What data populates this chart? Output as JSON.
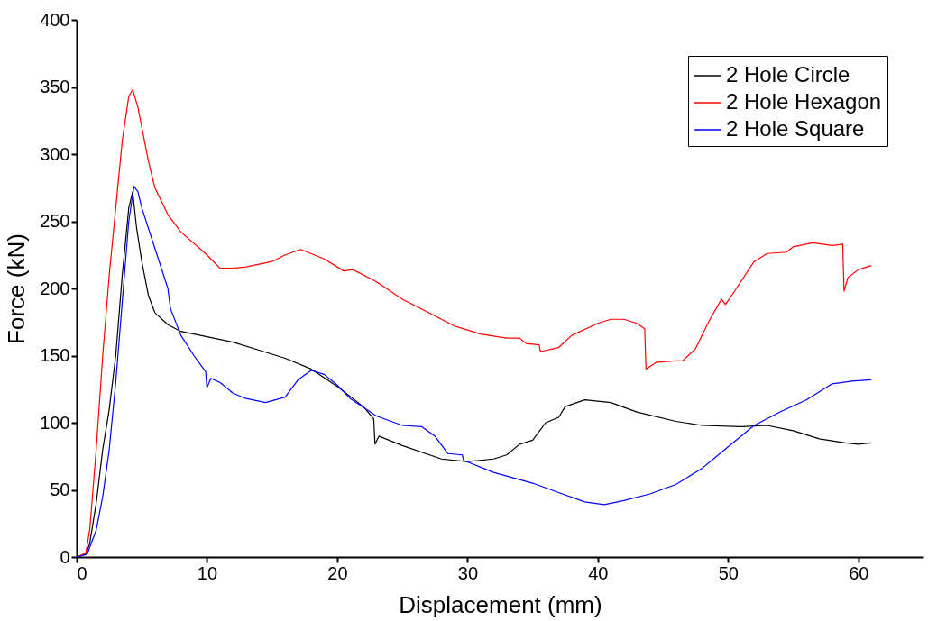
{
  "chart_data": {
    "type": "line",
    "xlabel": "Displacement (mm)",
    "ylabel": "Force (kN)",
    "xlim": [
      0,
      65
    ],
    "xticks": [
      0,
      10,
      20,
      30,
      40,
      50,
      60
    ],
    "ylim": [
      0,
      400
    ],
    "yticks": [
      0,
      50,
      100,
      150,
      200,
      250,
      300,
      350,
      400
    ],
    "grid": false,
    "legend": "top right",
    "marker": "none",
    "line_style": "solid",
    "series": [
      {
        "name": "2 Hole Circle",
        "color": "#000000",
        "x": [
          0,
          0.7,
          1,
          1.5,
          2,
          2.5,
          3,
          3.5,
          4,
          4.3,
          4.6,
          5,
          5.5,
          6,
          7,
          8,
          10,
          12,
          14,
          16,
          18,
          20,
          22,
          22.8,
          22.9,
          23.2,
          25,
          28,
          30,
          32,
          33,
          34,
          35,
          36,
          37,
          37.5,
          39,
          41,
          43,
          46,
          48,
          51,
          53,
          55,
          57,
          59,
          60,
          61
        ],
        "values": [
          0,
          2,
          10,
          40,
          80,
          110,
          150,
          210,
          260,
          272,
          245,
          220,
          195,
          182,
          173,
          168,
          164,
          160,
          154,
          148,
          140,
          127,
          112,
          103,
          84,
          90,
          83,
          73,
          71,
          73,
          76,
          84,
          87,
          100,
          104,
          112,
          117,
          115,
          108,
          101,
          98,
          97,
          98,
          94,
          88,
          85,
          84,
          85
        ]
      },
      {
        "name": "2 Hole Hexagon",
        "color": "#ff0000",
        "x": [
          0,
          0.7,
          1,
          1.5,
          2,
          2.5,
          3,
          3.5,
          4,
          4.3,
          4.7,
          5,
          5.5,
          6,
          7,
          8,
          10,
          11,
          12,
          13,
          15,
          16,
          17.2,
          19,
          20.5,
          21.2,
          23,
          25,
          27,
          29,
          31,
          33,
          34,
          34.5,
          35.5,
          35.6,
          37,
          38,
          40,
          41,
          42,
          43,
          43.6,
          43.7,
          44.5,
          46,
          46.5,
          47.5,
          48.5,
          49.5,
          49.8,
          50.5,
          52,
          53,
          54.5,
          55,
          56.5,
          58,
          58.8,
          58.9,
          59.2,
          60,
          61
        ],
        "values": [
          0,
          3,
          20,
          80,
          150,
          210,
          260,
          310,
          343,
          348,
          335,
          320,
          295,
          275,
          255,
          242,
          225,
          215,
          215,
          216,
          220,
          225,
          229,
          222,
          213,
          214,
          205,
          192,
          182,
          172,
          166,
          163,
          163,
          159,
          158,
          153,
          156,
          165,
          174,
          177,
          177,
          174,
          170,
          140,
          145,
          146,
          146,
          155,
          175,
          192,
          188,
          198,
          220,
          226,
          227,
          231,
          234,
          232,
          233,
          198,
          208,
          214,
          217
        ]
      },
      {
        "name": "2 Hole Square",
        "color": "#0000ff",
        "x": [
          0,
          0.8,
          1.5,
          2,
          2.5,
          3,
          3.5,
          4,
          4.4,
          4.7,
          5,
          6,
          7,
          7.2,
          8,
          9,
          9.9,
          10,
          10.3,
          11,
          12,
          13,
          14.5,
          16,
          17,
          18,
          19,
          20,
          21,
          23,
          25,
          26.5,
          27.5,
          28.5,
          29.6,
          29.7,
          32,
          35,
          37,
          39,
          40.5,
          42,
          44,
          46,
          48,
          50,
          52,
          54,
          56,
          58,
          59.5,
          61
        ],
        "values": [
          0,
          2,
          20,
          45,
          80,
          130,
          190,
          250,
          276,
          272,
          260,
          230,
          200,
          185,
          165,
          150,
          138,
          126,
          133,
          130,
          122,
          118,
          115,
          119,
          132,
          139,
          136,
          128,
          118,
          105,
          98,
          97,
          90,
          77,
          76,
          72,
          63,
          55,
          48,
          41,
          39,
          42,
          47,
          54,
          66,
          82,
          98,
          108,
          117,
          129,
          131,
          132
        ]
      }
    ]
  }
}
